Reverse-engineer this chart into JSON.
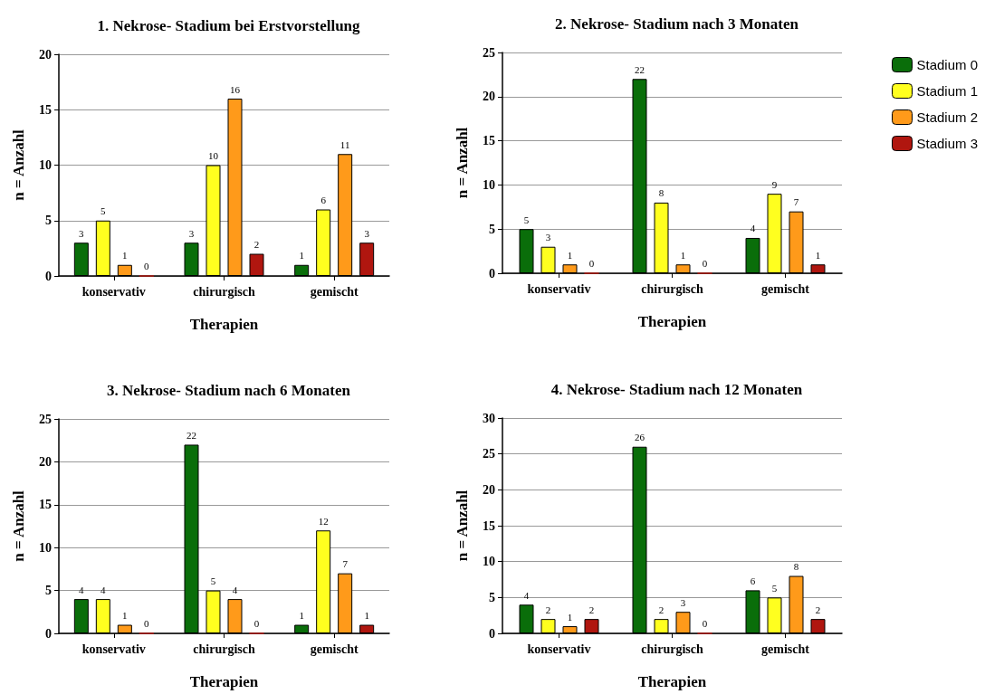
{
  "chart_data": [
    {
      "type": "bar",
      "title": "1. Nekrose- Stadium bei Erstvorstellung",
      "xlabel": "Therapien",
      "ylabel": "n = Anzahl",
      "categories": [
        "konservativ",
        "chirurgisch",
        "gemischt"
      ],
      "ylim": [
        0,
        20
      ],
      "yticks": [
        0,
        5,
        10,
        15,
        20
      ],
      "grid": "y",
      "data_labels": true,
      "legend": false,
      "series": [
        {
          "color": "#0a6e0a",
          "values": [
            3,
            3,
            1
          ]
        },
        {
          "color": "#ffff1f",
          "values": [
            5,
            10,
            6
          ]
        },
        {
          "color": "#ff9a1a",
          "values": [
            1,
            16,
            11
          ]
        },
        {
          "color": "#b0160f",
          "values": [
            0,
            2,
            3
          ]
        }
      ]
    },
    {
      "type": "bar",
      "title": "2. Nekrose- Stadium nach 3 Monaten",
      "xlabel": "Therapien",
      "ylabel": "n = Anzahl",
      "categories": [
        "konservativ",
        "chirurgisch",
        "gemischt"
      ],
      "ylim": [
        0,
        25
      ],
      "yticks": [
        0,
        5,
        10,
        15,
        20,
        25
      ],
      "grid": "y",
      "data_labels": true,
      "legend": "right",
      "series": [
        {
          "name": "Stadium 0",
          "color": "#0a6e0a",
          "values": [
            5,
            22,
            4
          ]
        },
        {
          "name": "Stadium 1",
          "color": "#ffff1f",
          "values": [
            3,
            8,
            9
          ]
        },
        {
          "name": "Stadium 2",
          "color": "#ff9a1a",
          "values": [
            1,
            1,
            7
          ]
        },
        {
          "name": "Stadium 3",
          "color": "#b0160f",
          "values": [
            0,
            0,
            1
          ]
        }
      ]
    },
    {
      "type": "bar",
      "title": "3. Nekrose- Stadium nach 6 Monaten",
      "xlabel": "Therapien",
      "ylabel": "n = Anzahl",
      "categories": [
        "konservativ",
        "chirurgisch",
        "gemischt"
      ],
      "ylim": [
        0,
        25
      ],
      "yticks": [
        0,
        5,
        10,
        15,
        20,
        25
      ],
      "grid": "y",
      "data_labels": true,
      "legend": false,
      "series": [
        {
          "color": "#0a6e0a",
          "values": [
            4,
            22,
            1
          ]
        },
        {
          "color": "#ffff1f",
          "values": [
            4,
            5,
            12
          ]
        },
        {
          "color": "#ff9a1a",
          "values": [
            1,
            4,
            7
          ]
        },
        {
          "color": "#b0160f",
          "values": [
            0,
            0,
            1
          ]
        }
      ]
    },
    {
      "type": "bar",
      "title": "4. Nekrose- Stadium nach 12 Monaten",
      "xlabel": "Therapien",
      "ylabel": "n = Anzahl",
      "categories": [
        "konservativ",
        "chirurgisch",
        "gemischt"
      ],
      "ylim": [
        0,
        30
      ],
      "yticks": [
        0,
        5,
        10,
        15,
        20,
        25,
        30
      ],
      "grid": "y",
      "data_labels": true,
      "legend": false,
      "series": [
        {
          "color": "#0a6e0a",
          "values": [
            4,
            26,
            6
          ]
        },
        {
          "color": "#ffff1f",
          "values": [
            2,
            2,
            5
          ]
        },
        {
          "color": "#ff9a1a",
          "values": [
            1,
            3,
            8
          ]
        },
        {
          "color": "#b0160f",
          "values": [
            2,
            0,
            2
          ]
        }
      ]
    }
  ]
}
